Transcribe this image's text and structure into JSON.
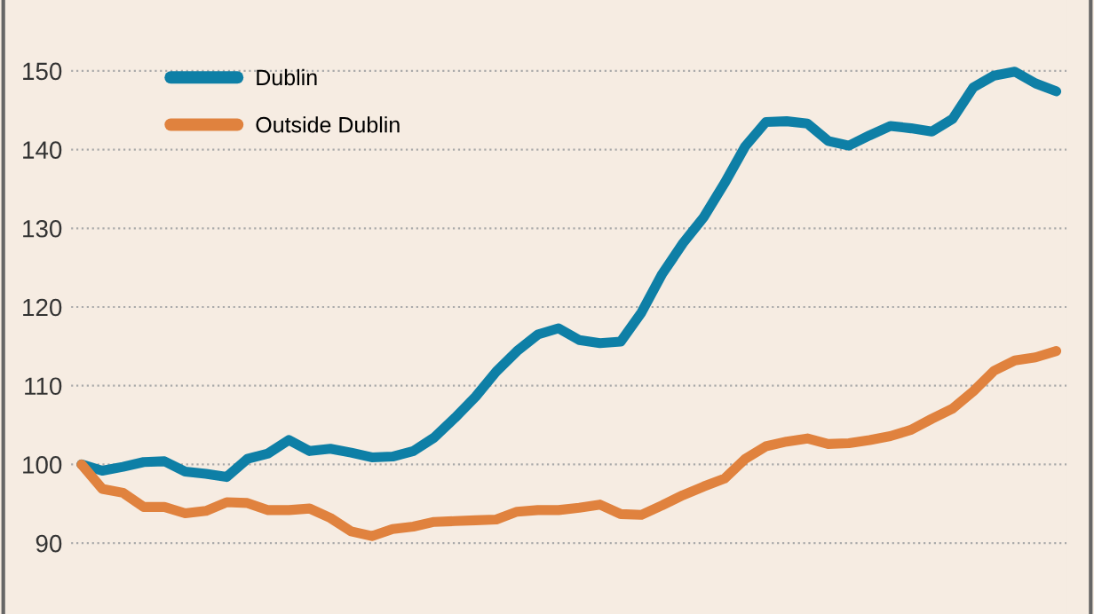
{
  "chart_data": {
    "type": "line",
    "categories": [
      null,
      null,
      null,
      null,
      null,
      null,
      null,
      null,
      null,
      null,
      null,
      null,
      null,
      null,
      null,
      null,
      null,
      null,
      null,
      null,
      null,
      null,
      null,
      null,
      null,
      null,
      null,
      null,
      null,
      null,
      null,
      null,
      null,
      null,
      null,
      null,
      null,
      null,
      null,
      null,
      null,
      null,
      null,
      null,
      null,
      null,
      null,
      null
    ],
    "ylim": [
      81,
      159
    ],
    "yticks": [
      90,
      100,
      110,
      120,
      130,
      140,
      150
    ],
    "grid": "y",
    "legend": "top left",
    "line_style": "solid",
    "series": [
      {
        "name": "Dublin",
        "color": "#0e7fa6",
        "values": [
          100,
          99.2,
          99.7,
          100.3,
          100.4,
          99.1,
          98.8,
          98.4,
          100.7,
          101.4,
          103.1,
          101.7,
          102,
          101.5,
          100.9,
          101,
          101.7,
          103.4,
          105.9,
          108.6,
          111.8,
          114.4,
          116.5,
          117.3,
          115.8,
          115.4,
          115.6,
          119.3,
          124.2,
          128.1,
          131.4,
          135.7,
          140.4,
          143.5,
          143.6,
          143.3,
          141.1,
          140.5,
          141.8,
          143,
          142.7,
          142.3,
          143.9,
          147.9,
          149.4,
          149.9,
          148.4,
          147.4
        ]
      },
      {
        "name": "Outside Dublin",
        "color": "#e0823e",
        "values": [
          100,
          96.9,
          96.4,
          94.6,
          94.6,
          93.8,
          94.1,
          95.2,
          95.1,
          94.2,
          94.2,
          94.4,
          93.2,
          91.5,
          90.9,
          91.8,
          92.1,
          92.7,
          92.8,
          92.9,
          93,
          94,
          94.2,
          94.2,
          94.5,
          94.9,
          93.7,
          93.6,
          94.8,
          96.1,
          97.2,
          98.2,
          100.7,
          102.3,
          102.9,
          103.3,
          102.6,
          102.7,
          103.1,
          103.6,
          104.4,
          105.8,
          107.1,
          109.3,
          111.9,
          113.2,
          113.6,
          114.4
        ]
      }
    ]
  }
}
